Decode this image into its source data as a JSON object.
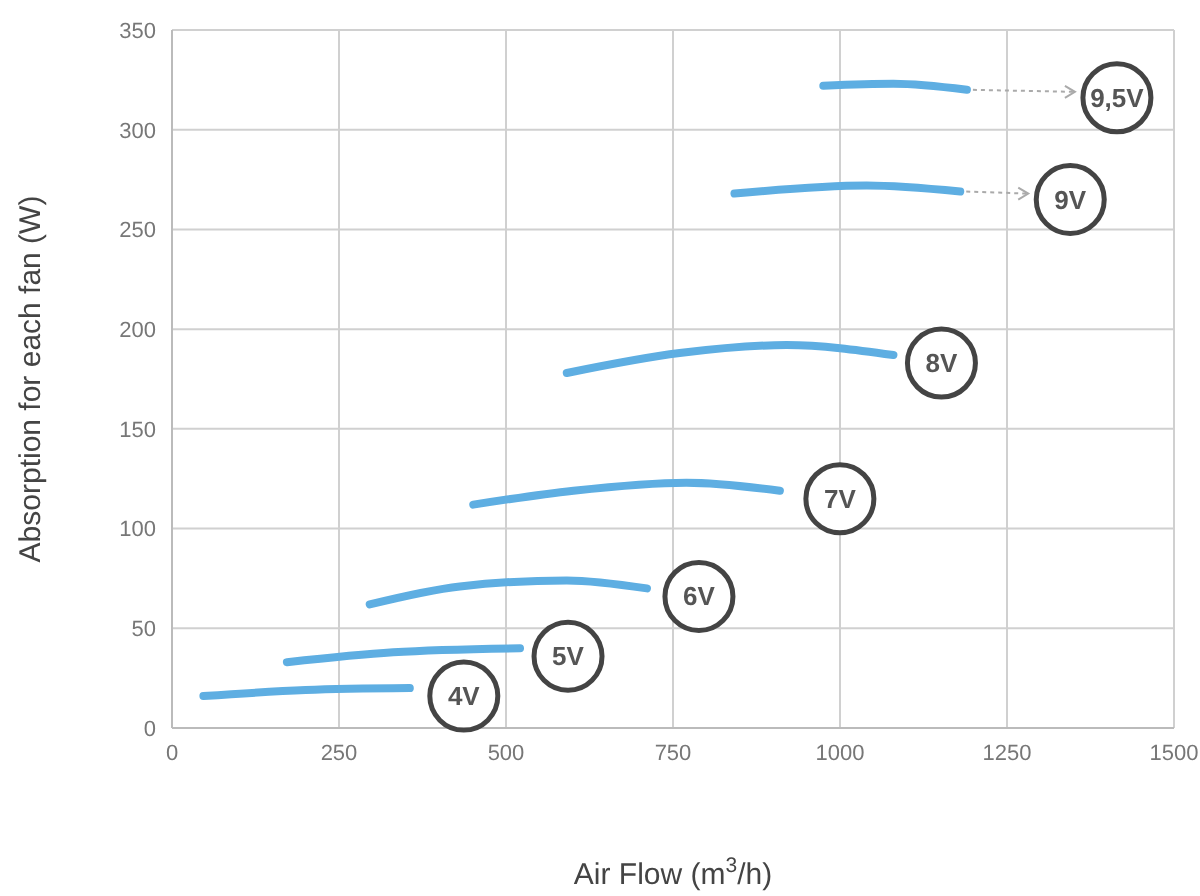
{
  "chart_data": {
    "type": "line",
    "xlabel": "Air Flow (m$^{3}$/h)",
    "ylabel": "Absorption for each fan (W)",
    "xlim": [
      0,
      1500
    ],
    "xticks": [
      0,
      250,
      500,
      750,
      1000,
      1250,
      1500
    ],
    "ylim": [
      0,
      350
    ],
    "yticks": [
      0,
      50,
      100,
      150,
      200,
      250,
      300,
      350
    ],
    "grid": true,
    "marker": "none",
    "line_style": "solid",
    "legend": false,
    "series": [
      {
        "name": "4V",
        "color": "#5eaee2",
        "x": [
          47,
          200,
          356
        ],
        "values": [
          16,
          19,
          20
        ]
      },
      {
        "name": "5V",
        "color": "#5eaee2",
        "x": [
          172,
          331,
          521
        ],
        "values": [
          33,
          38,
          40
        ]
      },
      {
        "name": "6V",
        "color": "#5eaee2",
        "x": [
          296,
          431,
          591,
          711
        ],
        "values": [
          62,
          71,
          74,
          70
        ]
      },
      {
        "name": "7V",
        "color": "#5eaee2",
        "x": [
          451,
          601,
          770,
          910
        ],
        "values": [
          112,
          119,
          123,
          119
        ]
      },
      {
        "name": "8V",
        "color": "#5eaee2",
        "x": [
          591,
          760,
          920,
          1080
        ],
        "values": [
          178,
          188,
          192,
          187
        ]
      },
      {
        "name": "9V",
        "color": "#5eaee2",
        "x": [
          842,
          1040,
          1180
        ],
        "values": [
          268,
          272,
          269
        ]
      },
      {
        "name": "9,5V",
        "color": "#5eaee2",
        "x": [
          975,
          1080,
          1190
        ],
        "values": [
          322,
          323,
          320
        ]
      }
    ]
  }
}
